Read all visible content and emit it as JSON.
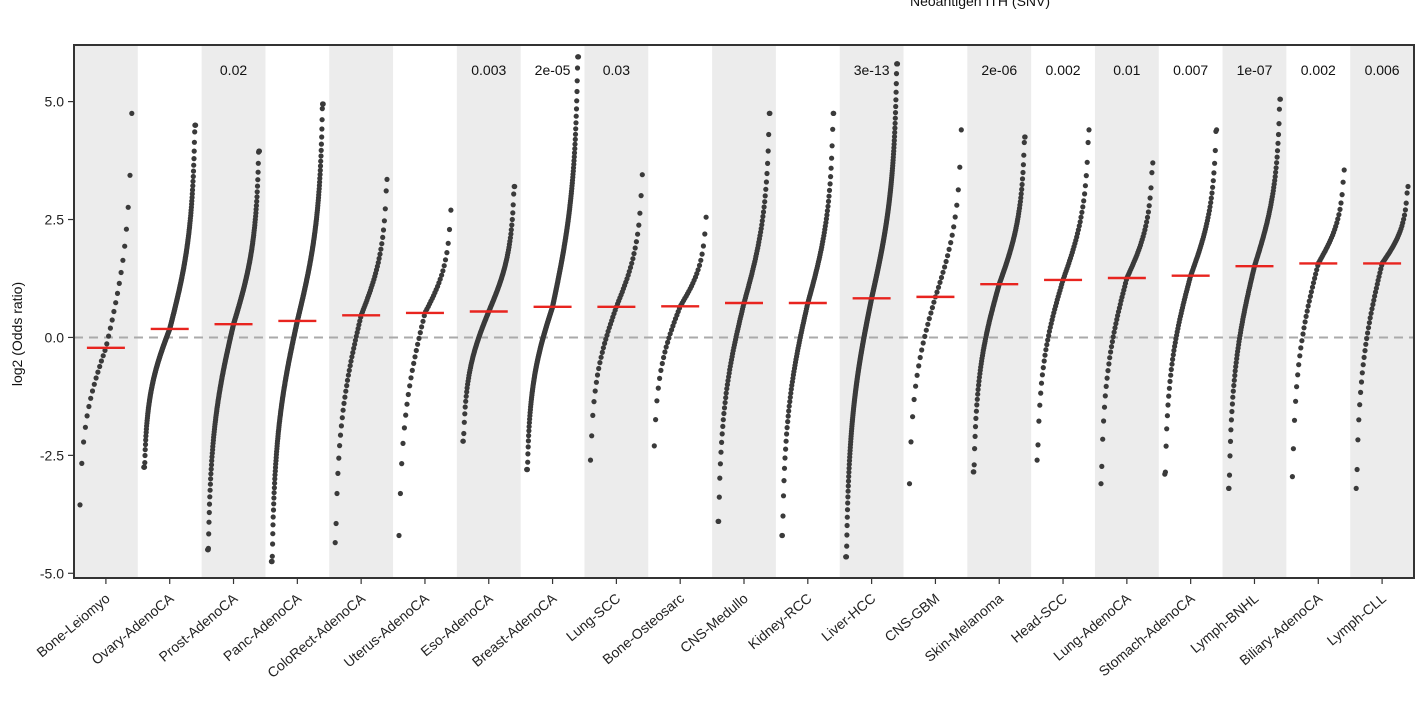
{
  "chart_data": {
    "type": "scatter",
    "title": "Neoantigen ITH (SNV)",
    "xlabel": "",
    "ylabel": "log2 (Odds ratio)",
    "ylim": [
      -5.1,
      6.2
    ],
    "yticks": [
      -5.0,
      -2.5,
      0.0,
      2.5,
      5.0
    ],
    "ytick_labels": [
      "-5.0",
      "-2.5",
      "0.0",
      "2.5",
      "5.0"
    ],
    "reference_line": {
      "y": 0,
      "style": "dashed",
      "color": "#aaaaaa"
    },
    "shaded_columns": "alternate, starting with first",
    "colors": {
      "points": "#3a3a3a",
      "median": "#e8241f",
      "shade": "#ececec",
      "frame": "#333333"
    },
    "categories": [
      "Bone-Leiomyo",
      "Ovary-AdenoCA",
      "Prost-AdenoCA",
      "Panc-AdenoCA",
      "ColoRect-AdenoCA",
      "Uterus-AdenoCA",
      "Eso-AdenoCA",
      "Breast-AdenoCA",
      "Lung-SCC",
      "Bone-Osteosarc",
      "CNS-Medullo",
      "Kidney-RCC",
      "Liver-HCC",
      "CNS-GBM",
      "Skin-Melanoma",
      "Head-SCC",
      "Lung-AdenoCA",
      "Stomach-AdenoCA",
      "Lymph-BNHL",
      "Biliary-AdenoCA",
      "Lymph-CLL"
    ],
    "pvalues": [
      "",
      "",
      "0.02",
      "",
      "",
      "",
      "0.003",
      "2e-05",
      "0.03",
      "",
      "",
      "",
      "3e-13",
      "",
      "2e-06",
      "0.002",
      "0.01",
      "0.007",
      "1e-07",
      "0.002",
      "0.006"
    ],
    "medians": [
      -0.22,
      0.18,
      0.28,
      0.35,
      0.47,
      0.52,
      0.55,
      0.65,
      0.65,
      0.66,
      0.73,
      0.73,
      0.83,
      0.86,
      1.13,
      1.22,
      1.26,
      1.31,
      1.51,
      1.57,
      1.57
    ],
    "groups": [
      {
        "n": 30,
        "min": -3.55,
        "max": 4.75
      },
      {
        "n": 220,
        "min": -2.75,
        "max": 4.5
      },
      {
        "n": 190,
        "min": -4.5,
        "max": 3.95
      },
      {
        "n": 230,
        "min": -4.75,
        "max": 4.95
      },
      {
        "n": 60,
        "min": -4.35,
        "max": 3.35
      },
      {
        "n": 40,
        "min": -4.2,
        "max": 2.7
      },
      {
        "n": 110,
        "min": -2.2,
        "max": 3.2
      },
      {
        "n": 210,
        "min": -2.8,
        "max": 5.95
      },
      {
        "n": 45,
        "min": -2.6,
        "max": 3.45
      },
      {
        "n": 40,
        "min": -2.3,
        "max": 2.55
      },
      {
        "n": 90,
        "min": -3.9,
        "max": 4.75
      },
      {
        "n": 100,
        "min": -4.2,
        "max": 4.75
      },
      {
        "n": 260,
        "min": -4.65,
        "max": 5.8
      },
      {
        "n": 35,
        "min": -3.1,
        "max": 4.4
      },
      {
        "n": 120,
        "min": -2.85,
        "max": 4.25
      },
      {
        "n": 60,
        "min": -2.6,
        "max": 4.4
      },
      {
        "n": 60,
        "min": -3.1,
        "max": 3.7
      },
      {
        "n": 80,
        "min": -2.9,
        "max": 4.4
      },
      {
        "n": 110,
        "min": -3.2,
        "max": 5.05
      },
      {
        "n": 50,
        "min": -2.95,
        "max": 3.55
      },
      {
        "n": 60,
        "min": -3.2,
        "max": 3.2
      }
    ]
  }
}
